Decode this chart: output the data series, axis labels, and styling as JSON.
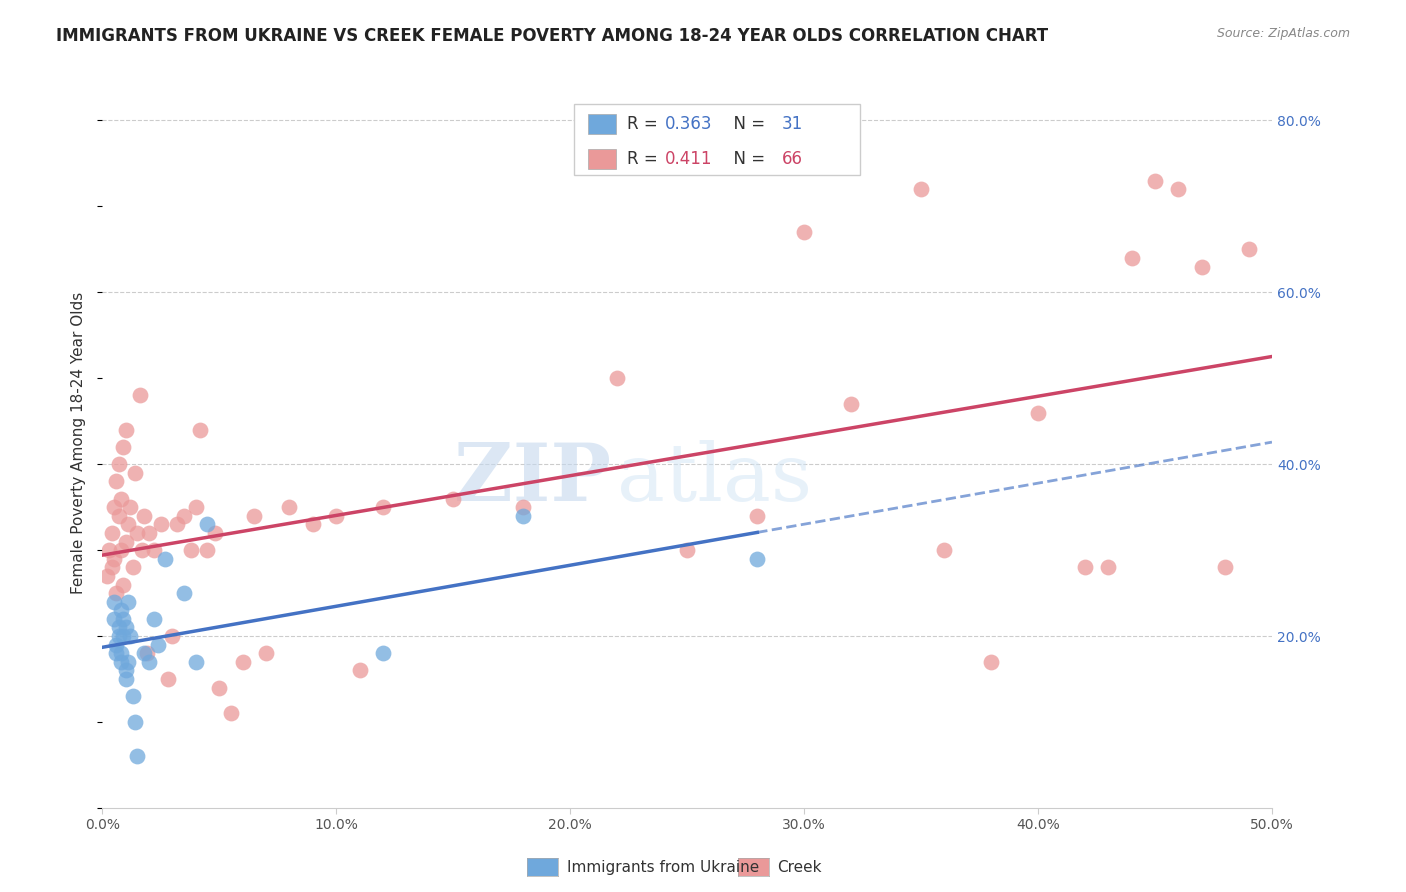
{
  "title": "IMMIGRANTS FROM UKRAINE VS CREEK FEMALE POVERTY AMONG 18-24 YEAR OLDS CORRELATION CHART",
  "source": "Source: ZipAtlas.com",
  "ylabel": "Female Poverty Among 18-24 Year Olds",
  "xlim": [
    0.0,
    0.5
  ],
  "ylim": [
    0.0,
    0.85
  ],
  "ukraine_color": "#6fa8dc",
  "creek_color": "#ea9999",
  "ukraine_line_color": "#4472c4",
  "creek_line_color": "#cc4466",
  "ukraine_R": 0.363,
  "ukraine_N": 31,
  "creek_R": 0.411,
  "creek_N": 66,
  "legend_label1": "Immigrants from Ukraine",
  "legend_label2": "Creek",
  "watermark_zip": "ZIP",
  "watermark_atlas": "atlas",
  "ukraine_x": [
    0.005,
    0.005,
    0.006,
    0.006,
    0.007,
    0.007,
    0.008,
    0.008,
    0.008,
    0.009,
    0.009,
    0.01,
    0.01,
    0.01,
    0.011,
    0.011,
    0.012,
    0.013,
    0.014,
    0.015,
    0.018,
    0.02,
    0.022,
    0.024,
    0.027,
    0.035,
    0.04,
    0.045,
    0.12,
    0.18,
    0.28
  ],
  "ukraine_y": [
    0.24,
    0.22,
    0.19,
    0.18,
    0.2,
    0.21,
    0.17,
    0.18,
    0.23,
    0.2,
    0.22,
    0.16,
    0.21,
    0.15,
    0.17,
    0.24,
    0.2,
    0.13,
    0.1,
    0.06,
    0.18,
    0.17,
    0.22,
    0.19,
    0.29,
    0.25,
    0.17,
    0.33,
    0.18,
    0.34,
    0.29
  ],
  "creek_x": [
    0.002,
    0.003,
    0.004,
    0.004,
    0.005,
    0.005,
    0.006,
    0.006,
    0.007,
    0.007,
    0.008,
    0.008,
    0.009,
    0.009,
    0.01,
    0.01,
    0.011,
    0.012,
    0.013,
    0.014,
    0.015,
    0.016,
    0.017,
    0.018,
    0.019,
    0.02,
    0.022,
    0.025,
    0.028,
    0.03,
    0.032,
    0.035,
    0.038,
    0.04,
    0.042,
    0.045,
    0.048,
    0.05,
    0.055,
    0.06,
    0.065,
    0.07,
    0.08,
    0.09,
    0.1,
    0.11,
    0.12,
    0.15,
    0.18,
    0.22,
    0.25,
    0.28,
    0.3,
    0.32,
    0.35,
    0.36,
    0.38,
    0.4,
    0.42,
    0.43,
    0.44,
    0.45,
    0.46,
    0.47,
    0.48,
    0.49
  ],
  "creek_y": [
    0.27,
    0.3,
    0.32,
    0.28,
    0.35,
    0.29,
    0.38,
    0.25,
    0.34,
    0.4,
    0.36,
    0.3,
    0.42,
    0.26,
    0.44,
    0.31,
    0.33,
    0.35,
    0.28,
    0.39,
    0.32,
    0.48,
    0.3,
    0.34,
    0.18,
    0.32,
    0.3,
    0.33,
    0.15,
    0.2,
    0.33,
    0.34,
    0.3,
    0.35,
    0.44,
    0.3,
    0.32,
    0.14,
    0.11,
    0.17,
    0.34,
    0.18,
    0.35,
    0.33,
    0.34,
    0.16,
    0.35,
    0.36,
    0.35,
    0.5,
    0.3,
    0.34,
    0.67,
    0.47,
    0.72,
    0.3,
    0.17,
    0.46,
    0.28,
    0.28,
    0.64,
    0.73,
    0.72,
    0.63,
    0.28,
    0.65
  ]
}
